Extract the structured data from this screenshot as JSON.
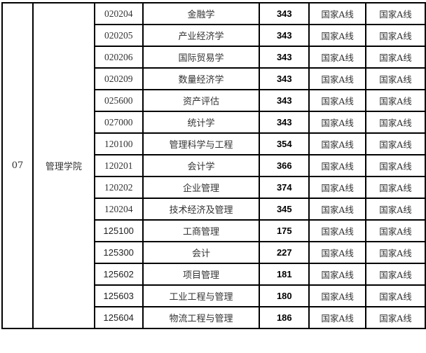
{
  "college_no": "07",
  "college_name": "管理学院",
  "rows": [
    {
      "code": "020204",
      "major": "金融学",
      "score": "343",
      "line1": "国家A线",
      "line2": "国家A线",
      "code_style": "serif"
    },
    {
      "code": "020205",
      "major": "产业经济学",
      "score": "343",
      "line1": "国家A线",
      "line2": "国家A线",
      "code_style": "serif"
    },
    {
      "code": "020206",
      "major": "国际贸易学",
      "score": "343",
      "line1": "国家A线",
      "line2": "国家A线",
      "code_style": "serif"
    },
    {
      "code": "020209",
      "major": "数量经济学",
      "score": "343",
      "line1": "国家A线",
      "line2": "国家A线",
      "code_style": "serif"
    },
    {
      "code": "025600",
      "major": "资产评估",
      "score": "343",
      "line1": "国家A线",
      "line2": "国家A线",
      "code_style": "serif"
    },
    {
      "code": "027000",
      "major": "统计学",
      "score": "343",
      "line1": "国家A线",
      "line2": "国家A线",
      "code_style": "serif"
    },
    {
      "code": "120100",
      "major": "管理科学与工程",
      "score": "354",
      "line1": "国家A线",
      "line2": "国家A线",
      "code_style": "serif"
    },
    {
      "code": "120201",
      "major": "会计学",
      "score": "366",
      "line1": "国家A线",
      "line2": "国家A线",
      "code_style": "serif"
    },
    {
      "code": "120202",
      "major": "企业管理",
      "score": "374",
      "line1": "国家A线",
      "line2": "国家A线",
      "code_style": "serif"
    },
    {
      "code": "120204",
      "major": "技术经济及管理",
      "score": "345",
      "line1": "国家A线",
      "line2": "国家A线",
      "code_style": "serif"
    },
    {
      "code": "125100",
      "major": "工商管理",
      "score": "175",
      "line1": "国家A线",
      "line2": "国家A线",
      "code_style": "sans"
    },
    {
      "code": "125300",
      "major": "会计",
      "score": "227",
      "line1": "国家A线",
      "line2": "国家A线",
      "code_style": "sans"
    },
    {
      "code": "125602",
      "major": "项目管理",
      "score": "181",
      "line1": "国家A线",
      "line2": "国家A线",
      "code_style": "sans"
    },
    {
      "code": "125603",
      "major": "工业工程与管理",
      "score": "180",
      "line1": "国家A线",
      "line2": "国家A线",
      "code_style": "sans"
    },
    {
      "code": "125604",
      "major": "物流工程与管理",
      "score": "186",
      "line1": "国家A线",
      "line2": "国家A线",
      "code_style": "sans"
    }
  ]
}
